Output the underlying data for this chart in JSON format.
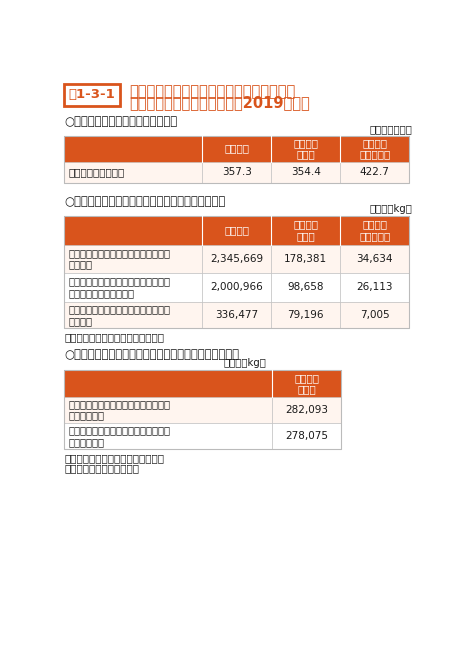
{
  "title_box": "表1-3-1",
  "title_line1": "家電リサイクル法に基づく再商品化による",
  "title_line2": "フロン類の回収量・破壊量（2019年度）",
  "orange": "#D9541C",
  "white": "#FFFFFF",
  "light_row": "#FFF5EF",
  "dark_text": "#1A1A1A",
  "gray_line": "#BBBBBB",
  "section1_title": "○廃家電４品目の再商品化実施状況",
  "section1_unit": "（単位：万台）",
  "section1_headers": [
    "エアコン",
    "冷蔵庫・\n冷凍庫",
    "洗濯機・\n衣類乾燥機"
  ],
  "section1_rows": [
    [
      "再商品化等処理台数",
      "357.3",
      "354.4",
      "422.7"
    ]
  ],
  "section2_title": "○冷媒として使用されていたフロン類の回収重量等",
  "section2_unit": "（単位：kg）",
  "section2_headers": [
    "エアコン",
    "冷蔵庫・\n冷凍庫",
    "洗濯機・\n衣類乾燥機"
  ],
  "section2_rows": [
    [
      "冷媒として使用されていたフロン類の\n回収重量",
      "2,345,669",
      "178,381",
      "34,634"
    ],
    [
      "冷媒として使用されていたフロン類の\n再生又は再利用した重量",
      "2,000,966",
      "98,658",
      "26,113"
    ],
    [
      "冷媒として使用されていたフロン類の\n破壊重量",
      "336,477",
      "79,196",
      "7,005"
    ]
  ],
  "note1": "注：値は全て小数点以下を切捨て。",
  "section3_title": "○断熱材に含まれる液化回収したフロン類の回収重量等",
  "section3_unit": "（単位：kg）",
  "section3_headers": [
    "冷蔵庫・\n冷凍庫"
  ],
  "section3_rows": [
    [
      "断熱材に含まれる液化回収したフロン\n類の回収重量",
      "282,093"
    ],
    [
      "断熱材に含まれる液化回収したフロン\n類の破壊重量",
      "278,075"
    ]
  ],
  "note2": "注：値は全て小数点以下を切捨て。",
  "note3": "資料：環境省、経済産業省",
  "bg_color": "#FFFFFF"
}
